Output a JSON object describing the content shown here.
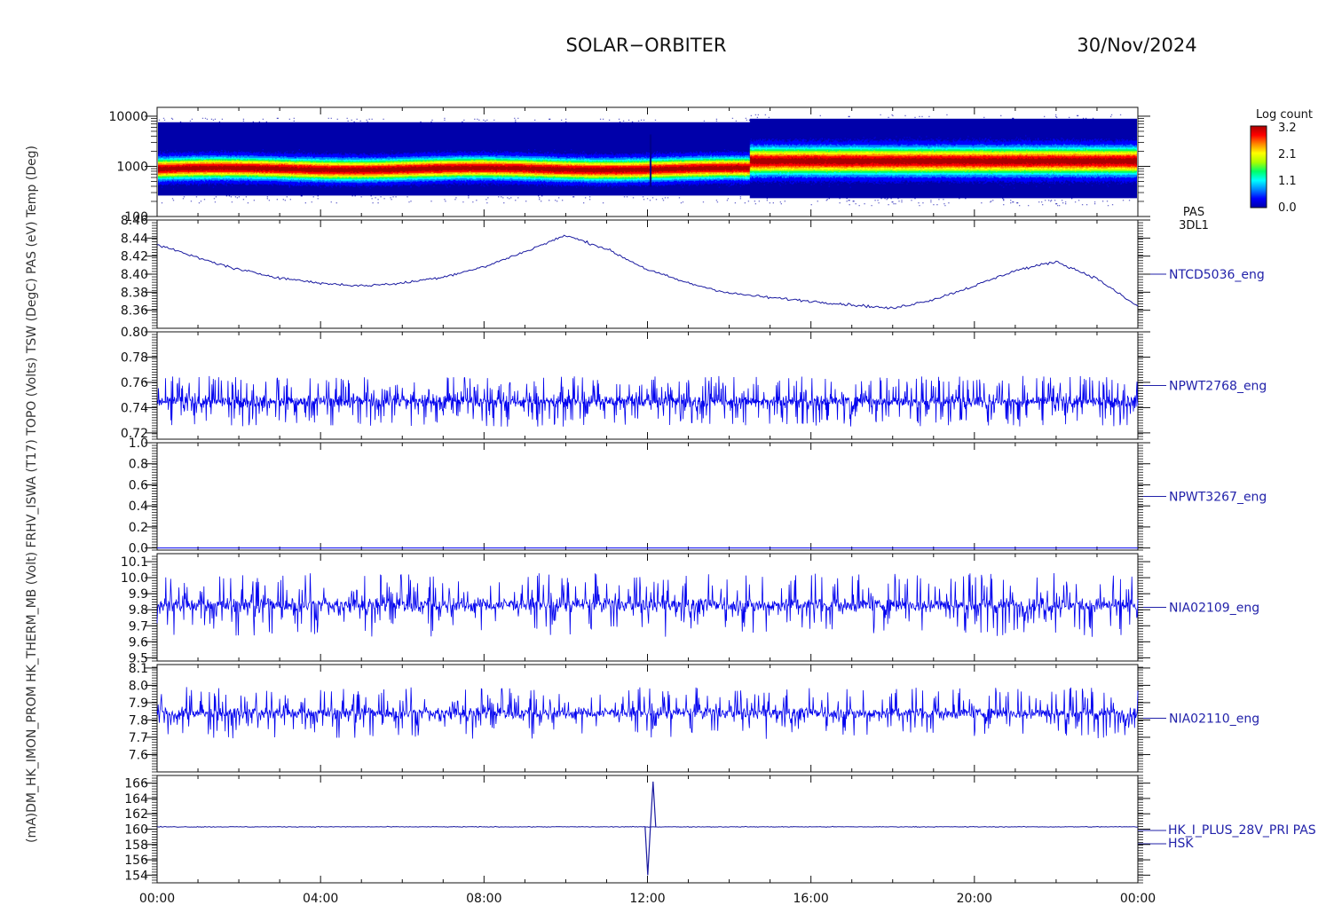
{
  "header": {
    "mission": "SOLAR−ORBITER",
    "date": "30/Nov/2024"
  },
  "colorbar": {
    "title": "Log count",
    "ticks": [
      "3.2",
      "2.1",
      "1.1",
      "0.0"
    ],
    "colors": [
      "#0000aa",
      "#0000ff",
      "#0088ff",
      "#00ffff",
      "#00ff66",
      "#aaff00",
      "#ffff00",
      "#ff8800",
      "#ff0000",
      "#aa0000"
    ]
  },
  "panel_names": [
    "PAS 3DL1",
    "NTCD5036_eng",
    "NPWT2768_eng",
    "NPWT3267_eng",
    "NIA02109_eng",
    "NIA02110_eng",
    "HK_I_PLUS_28V_PRI PAS HSK"
  ],
  "chart_data": [
    {
      "type": "heatmap",
      "side_label": [
        "PAS",
        "3DL1"
      ],
      "ylabel": "(eV)",
      "y_scale": "log",
      "yticks": [
        "10000",
        "1000",
        "100"
      ],
      "ylim": [
        100,
        15000
      ],
      "xlim": [
        0,
        24
      ],
      "description_values": {
        "peak_energy_eV_before_14_30": 900,
        "peak_energy_eV_after_14_30": 1300,
        "transition_hour": 14.5
      }
    },
    {
      "type": "line",
      "side_label": "NTCD5036_eng",
      "ylabel": "Temp (Deg)",
      "yticks": [
        "8.46",
        "8.44",
        "8.42",
        "8.40",
        "8.38",
        "8.36"
      ],
      "ylim": [
        8.34,
        8.46
      ],
      "x": [
        0,
        1,
        2,
        3,
        4,
        5,
        6,
        7,
        8,
        9,
        10,
        11,
        12,
        13,
        14,
        15,
        16,
        17,
        18,
        19,
        20,
        21,
        22,
        23,
        24
      ],
      "values": [
        8.433,
        8.418,
        8.405,
        8.396,
        8.39,
        8.387,
        8.39,
        8.397,
        8.408,
        8.425,
        8.443,
        8.428,
        8.405,
        8.39,
        8.379,
        8.374,
        8.37,
        8.366,
        8.362,
        8.372,
        8.387,
        8.404,
        8.414,
        8.395,
        8.364
      ]
    },
    {
      "type": "line",
      "side_label": "NPWT2768_eng",
      "yticks": [
        "0.80",
        "0.78",
        "0.76",
        "0.74",
        "0.72"
      ],
      "ylim": [
        0.715,
        0.8
      ],
      "baseline": 0.745,
      "noise_amplitude": 0.02
    },
    {
      "type": "line",
      "side_label": "NPWT3267_eng",
      "yticks": [
        "1.0",
        "0.8",
        "0.6",
        "0.4",
        "0.2",
        "0.0"
      ],
      "ylim": [
        -0.02,
        1.0
      ],
      "baseline": 0.0
    },
    {
      "type": "line",
      "side_label": "NIA02109_eng",
      "yticks": [
        "10.1",
        "10.0",
        "9.9",
        "9.8",
        "9.7",
        "9.6",
        "9.5"
      ],
      "ylim": [
        9.48,
        10.15
      ],
      "baseline": 9.83,
      "noise_amplitude": 0.2
    },
    {
      "type": "line",
      "side_label": "NIA02110_eng",
      "yticks": [
        "8.1",
        "8.0",
        "7.9",
        "7.8",
        "7.7",
        "7.6"
      ],
      "ylim": [
        7.5,
        8.12
      ],
      "baseline": 7.84,
      "noise_amplitude": 0.15
    },
    {
      "type": "line",
      "side_label": [
        "HK_I_PLUS_28V_PRI PAS",
        "HSK"
      ],
      "ylabel": "(mA)",
      "yticks": [
        "166",
        "164",
        "162",
        "160",
        "158",
        "156",
        "154"
      ],
      "ylim": [
        153,
        167
      ],
      "baseline": 160.3,
      "spike": {
        "x": 12.05,
        "min": 154,
        "max": 166.2
      }
    }
  ],
  "x_axis": {
    "ticks": [
      "00:00",
      "04:00",
      "08:00",
      "12:00",
      "16:00",
      "20:00",
      "00:00"
    ],
    "range_hours": [
      0,
      24
    ]
  },
  "y_labels_overlapped": "(mA)DM_HK_IMON_PROM HK_THERM_MB (Volt) FRHV_ISWA (T17) TOPO (Volts) TSW (DegC) PAS (eV) Temp (Deg)"
}
